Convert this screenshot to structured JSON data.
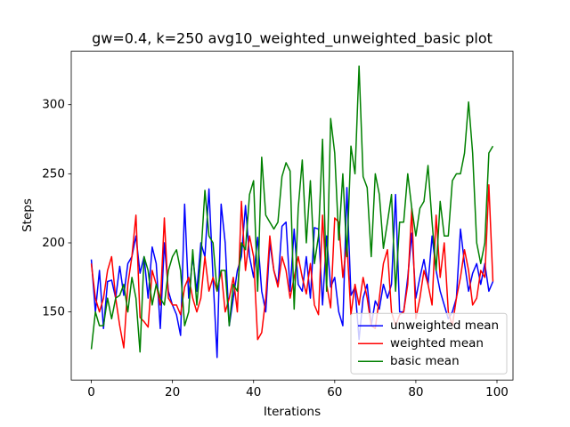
{
  "chart_data": {
    "type": "line",
    "title": "gw=0.4, k=250 avg10_weighted_unweighted_basic plot",
    "x_label": "Iterations",
    "y_label": "Steps",
    "x": [
      0,
      1,
      2,
      3,
      4,
      5,
      6,
      7,
      8,
      9,
      10,
      11,
      12,
      13,
      14,
      15,
      16,
      17,
      18,
      19,
      20,
      21,
      22,
      23,
      24,
      25,
      26,
      27,
      28,
      29,
      30,
      31,
      32,
      33,
      34,
      35,
      36,
      37,
      38,
      39,
      40,
      41,
      42,
      43,
      44,
      45,
      46,
      47,
      48,
      49,
      50,
      51,
      52,
      53,
      54,
      55,
      56,
      57,
      58,
      59,
      60,
      61,
      62,
      63,
      64,
      65,
      66,
      67,
      68,
      69,
      70,
      71,
      72,
      73,
      74,
      75,
      76,
      77,
      78,
      79,
      80,
      81,
      82,
      83,
      84,
      85,
      86,
      87,
      88,
      89,
      90,
      91,
      92,
      93,
      94,
      95,
      96,
      97,
      98,
      99
    ],
    "series": [
      {
        "name": "unweighted mean",
        "color": "#0000ff",
        "values": [
          188,
          150,
          180,
          138,
          172,
          173,
          160,
          183,
          162,
          185,
          190,
          205,
          178,
          190,
          160,
          197,
          185,
          138,
          200,
          165,
          155,
          148,
          133,
          228,
          160,
          190,
          165,
          200,
          190,
          239,
          175,
          117,
          228,
          200,
          140,
          160,
          180,
          190,
          227,
          190,
          175,
          204,
          165,
          150,
          200,
          180,
          170,
          212,
          215,
          165,
          210,
          170,
          165,
          190,
          160,
          211,
          210,
          155,
          205,
          168,
          175,
          150,
          140,
          240,
          162,
          168,
          130,
          160,
          170,
          140,
          158,
          152,
          170,
          160,
          170,
          235,
          150,
          150,
          175,
          207,
          160,
          175,
          188,
          170,
          205,
          180,
          165,
          155,
          145,
          150,
          160,
          210,
          185,
          165,
          178,
          185,
          170,
          185,
          165,
          172
        ]
      },
      {
        "name": "weighted mean",
        "color": "#ff0000",
        "values": [
          185,
          160,
          150,
          160,
          180,
          190,
          160,
          140,
          124,
          170,
          190,
          220,
          146,
          143,
          139,
          180,
          170,
          155,
          218,
          160,
          155,
          155,
          148,
          168,
          175,
          160,
          150,
          160,
          190,
          165,
          175,
          165,
          180,
          150,
          160,
          175,
          150,
          230,
          180,
          205,
          190,
          130,
          135,
          160,
          205,
          180,
          168,
          190,
          180,
          160,
          175,
          190,
          175,
          163,
          185,
          155,
          148,
          220,
          170,
          153,
          218,
          215,
          175,
          200,
          148,
          170,
          155,
          175,
          160,
          140,
          138,
          160,
          185,
          195,
          150,
          140,
          148,
          150,
          170,
          225,
          145,
          160,
          180,
          170,
          155,
          220,
          175,
          200,
          150,
          140,
          160,
          175,
          195,
          180,
          155,
          160,
          180,
          175,
          242,
          172
        ]
      },
      {
        "name": "basic mean",
        "color": "#008000",
        "values": [
          123,
          150,
          140,
          140,
          160,
          145,
          160,
          162,
          170,
          150,
          175,
          160,
          121,
          190,
          180,
          155,
          170,
          160,
          155,
          180,
          190,
          195,
          180,
          140,
          150,
          195,
          155,
          190,
          238,
          205,
          200,
          165,
          180,
          180,
          140,
          170,
          165,
          200,
          195,
          235,
          245,
          165,
          262,
          220,
          215,
          210,
          215,
          248,
          258,
          252,
          152,
          225,
          260,
          200,
          245,
          185,
          205,
          275,
          165,
          290,
          265,
          202,
          250,
          190,
          270,
          250,
          328,
          248,
          240,
          190,
          250,
          235,
          196,
          215,
          235,
          165,
          215,
          215,
          250,
          225,
          205,
          225,
          230,
          256,
          215,
          180,
          230,
          205,
          205,
          245,
          250,
          250,
          265,
          302,
          265,
          200,
          185,
          200,
          265,
          270
        ]
      }
    ],
    "xlim": [
      -4.95,
      103.95
    ],
    "xticks": [
      0,
      20,
      40,
      60,
      80,
      100
    ],
    "ylim": [
      100.7,
      338.7
    ],
    "yticks": [
      150,
      200,
      250,
      300
    ],
    "legend": "lower right",
    "grid": false
  }
}
